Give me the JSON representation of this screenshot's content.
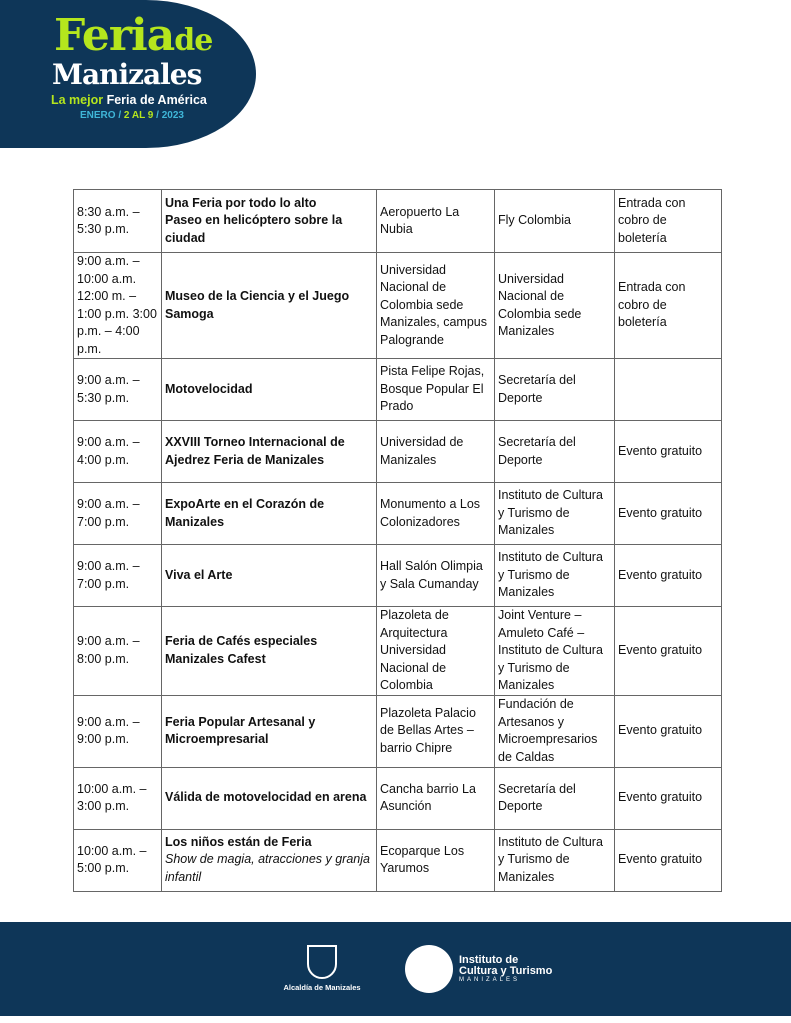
{
  "header": {
    "logo_line1": "Feria",
    "logo_line1b": "de",
    "logo_line2": "Manizales",
    "tagline_a": "La mejor",
    "tagline_b": "Feria de América",
    "dates_a": "ENERO /",
    "dates_b": "2 AL 9",
    "dates_c": "/ 2023"
  },
  "rows": [
    {
      "time": "8:30 a.m. – 5:30 p.m.",
      "event": "Una Feria por todo lo alto",
      "event_sub": "Paseo en helicóptero sobre la ciudad",
      "sub_italic": false,
      "place": "Aeropuerto La Nubia",
      "org": "Fly Colombia",
      "entry": "Entrada con cobro de boletería"
    },
    {
      "time": "9:00 a.m. – 10:00 a.m. 12:00 m. – 1:00 p.m. 3:00 p.m. – 4:00 p.m.",
      "event": "Museo de la Ciencia y el Juego Samoga",
      "place": "Universidad Nacional de Colombia sede Manizales, campus Palogrande",
      "org": "Universidad Nacional de Colombia sede Manizales",
      "entry": "Entrada con cobro de boletería"
    },
    {
      "time": "9:00 a.m. – 5:30 p.m.",
      "event": "Motovelocidad",
      "place": "Pista Felipe Rojas, Bosque Popular El Prado",
      "org": "Secretaría del Deporte",
      "entry": ""
    },
    {
      "time": "9:00 a.m. – 4:00 p.m.",
      "event": "XXVIII Torneo Internacional de Ajedrez Feria de Manizales",
      "place": "Universidad de Manizales",
      "org": "Secretaría del Deporte",
      "entry": "Evento gratuito"
    },
    {
      "time": "9:00 a.m. – 7:00 p.m.",
      "event": "ExpoArte en el Corazón de Manizales",
      "place": "Monumento a Los Colonizadores",
      "org": "Instituto de Cultura y Turismo de Manizales",
      "entry": "Evento gratuito"
    },
    {
      "time": "9:00 a.m. – 7:00 p.m.",
      "event": "Viva el Arte",
      "place": "Hall Salón Olimpia y Sala Cumanday",
      "org": "Instituto de Cultura y Turismo de Manizales",
      "entry": "Evento gratuito"
    },
    {
      "time": "9:00 a.m. – 8:00 p.m.",
      "event": "Feria de Cafés especiales Manizales Cafest",
      "place": "Plazoleta de Arquitectura Universidad Nacional de Colombia",
      "org": "Joint Venture – Amuleto Café – Instituto de Cultura y Turismo de Manizales",
      "entry": "Evento gratuito"
    },
    {
      "time": "9:00 a.m. – 9:00 p.m.",
      "event": "Feria Popular Artesanal y Microempresarial",
      "place": "Plazoleta Palacio de Bellas Artes – barrio Chipre",
      "org": "Fundación de Artesanos y Microempresarios de Caldas",
      "entry": "Evento gratuito"
    },
    {
      "time": "10:00 a.m. – 3:00 p.m.",
      "event": "Válida de motovelocidad en arena",
      "place": "Cancha barrio La Asunción",
      "org": "Secretaría del Deporte",
      "entry": "Evento gratuito"
    },
    {
      "time": "10:00 a.m. – 5:00 p.m.",
      "event": "Los niños están de Feria",
      "event_sub": "Show de magia, atracciones y granja infantil",
      "sub_italic": true,
      "place": "Ecoparque Los Yarumos",
      "org": "Instituto de Cultura y Turismo de Manizales",
      "entry": "Evento gratuito"
    }
  ],
  "footer": {
    "alcaldia": "Alcaldía de Manizales",
    "inst_line1": "Instituto de",
    "inst_line2": "Cultura y Turismo",
    "inst_line3": "MANIZALES"
  }
}
